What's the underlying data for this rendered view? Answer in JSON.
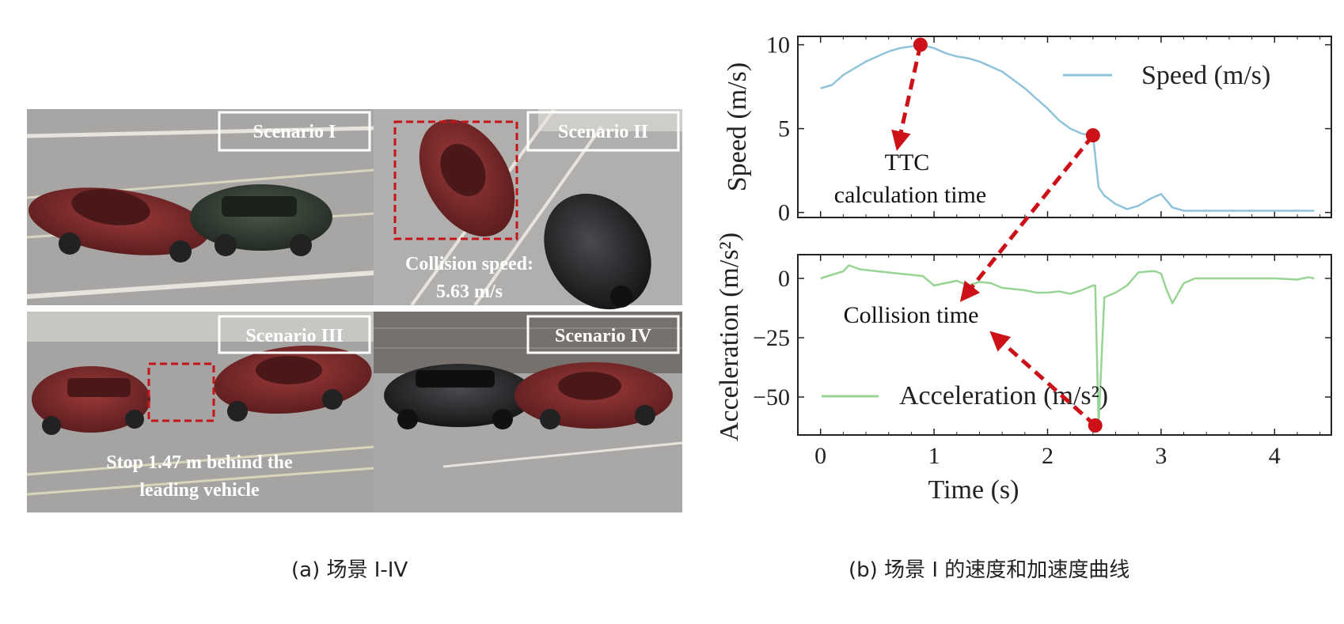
{
  "panel_a": {
    "caption": "(a) 场景 I-IV",
    "scenarios": [
      {
        "label": "Scenario I"
      },
      {
        "label": "Scenario II",
        "note_lines": [
          "Collision speed:",
          "5.63 m/s"
        ]
      },
      {
        "label": "Scenario III",
        "note_lines": [
          "Stop 1.47 m behind the",
          "leading vehicle"
        ]
      },
      {
        "label": "Scenario IV"
      }
    ]
  },
  "panel_b": {
    "caption": "(b) 场景 I 的速度和加速度曲线",
    "annotations": {
      "ttc_lines": [
        "TTC",
        "calculation time"
      ],
      "collision": "Collision time"
    }
  },
  "colors": {
    "speed": "#8fc3dc",
    "acceleration": "#98d494",
    "marker": "#cc1118",
    "scenario_box": "#c3151a"
  },
  "chart_data": [
    {
      "type": "line",
      "title": "",
      "xlabel": "",
      "ylabel": "Speed (m/s)",
      "xlim": [
        -0.2,
        4.5
      ],
      "ylim": [
        -0.3,
        10.5
      ],
      "yticks": [
        0,
        5,
        10
      ],
      "legend": "top-right",
      "series": [
        {
          "name": "Speed (m/s)",
          "x": [
            0,
            0.1,
            0.2,
            0.3,
            0.4,
            0.5,
            0.6,
            0.7,
            0.8,
            0.88,
            1.0,
            1.1,
            1.2,
            1.3,
            1.4,
            1.5,
            1.6,
            1.7,
            1.8,
            1.9,
            2.0,
            2.1,
            2.2,
            2.3,
            2.4,
            2.45,
            2.5,
            2.6,
            2.7,
            2.8,
            2.9,
            3.0,
            3.05,
            3.1,
            3.2,
            3.3,
            3.5,
            4.0,
            4.35
          ],
          "y": [
            7.4,
            7.6,
            8.2,
            8.6,
            9.0,
            9.3,
            9.6,
            9.8,
            9.9,
            10.0,
            9.8,
            9.5,
            9.3,
            9.2,
            9.0,
            8.7,
            8.4,
            7.9,
            7.4,
            6.8,
            6.2,
            5.5,
            5.0,
            4.7,
            4.6,
            1.5,
            1.0,
            0.5,
            0.2,
            0.4,
            0.8,
            1.1,
            0.7,
            0.3,
            0.1,
            0.1,
            0.1,
            0.1,
            0.1
          ]
        }
      ],
      "markers": [
        {
          "x": 0.88,
          "y": 10.0
        },
        {
          "x": 2.4,
          "y": 4.6
        }
      ]
    },
    {
      "type": "line",
      "title": "",
      "xlabel": "Time (s)",
      "ylabel": "Acceleration (m/s²)",
      "xlim": [
        -0.2,
        4.5
      ],
      "ylim": [
        -66,
        10
      ],
      "xticks": [
        0,
        1,
        2,
        3,
        4
      ],
      "yticks": [
        0,
        -25,
        -50
      ],
      "legend": "bottom-left",
      "series": [
        {
          "name": "Acceleration (m/s²)",
          "x": [
            0,
            0.1,
            0.2,
            0.25,
            0.35,
            0.5,
            0.8,
            0.9,
            1.0,
            1.1,
            1.2,
            1.3,
            1.4,
            1.5,
            1.6,
            1.7,
            1.8,
            1.9,
            2.0,
            2.1,
            2.2,
            2.3,
            2.4,
            2.42,
            2.45,
            2.47,
            2.5,
            2.6,
            2.7,
            2.8,
            2.9,
            2.95,
            3.0,
            3.05,
            3.1,
            3.2,
            3.3,
            3.5,
            4.0,
            4.2,
            4.3,
            4.35
          ],
          "y": [
            0,
            1.5,
            3.0,
            5.5,
            3.8,
            3.0,
            1.5,
            1.0,
            -3,
            -2,
            -1,
            -3,
            -1.5,
            -2,
            -4,
            -4.5,
            -5,
            -6,
            -6,
            -5.5,
            -6.5,
            -5,
            -3,
            -3,
            -62,
            -40,
            -8,
            -6,
            -3,
            2.5,
            3.0,
            3.0,
            2.0,
            -5,
            -10.5,
            -2,
            0,
            0,
            0,
            -0.5,
            0.5,
            0
          ]
        }
      ],
      "markers": [
        {
          "x": 2.42,
          "y": -62
        }
      ]
    }
  ]
}
